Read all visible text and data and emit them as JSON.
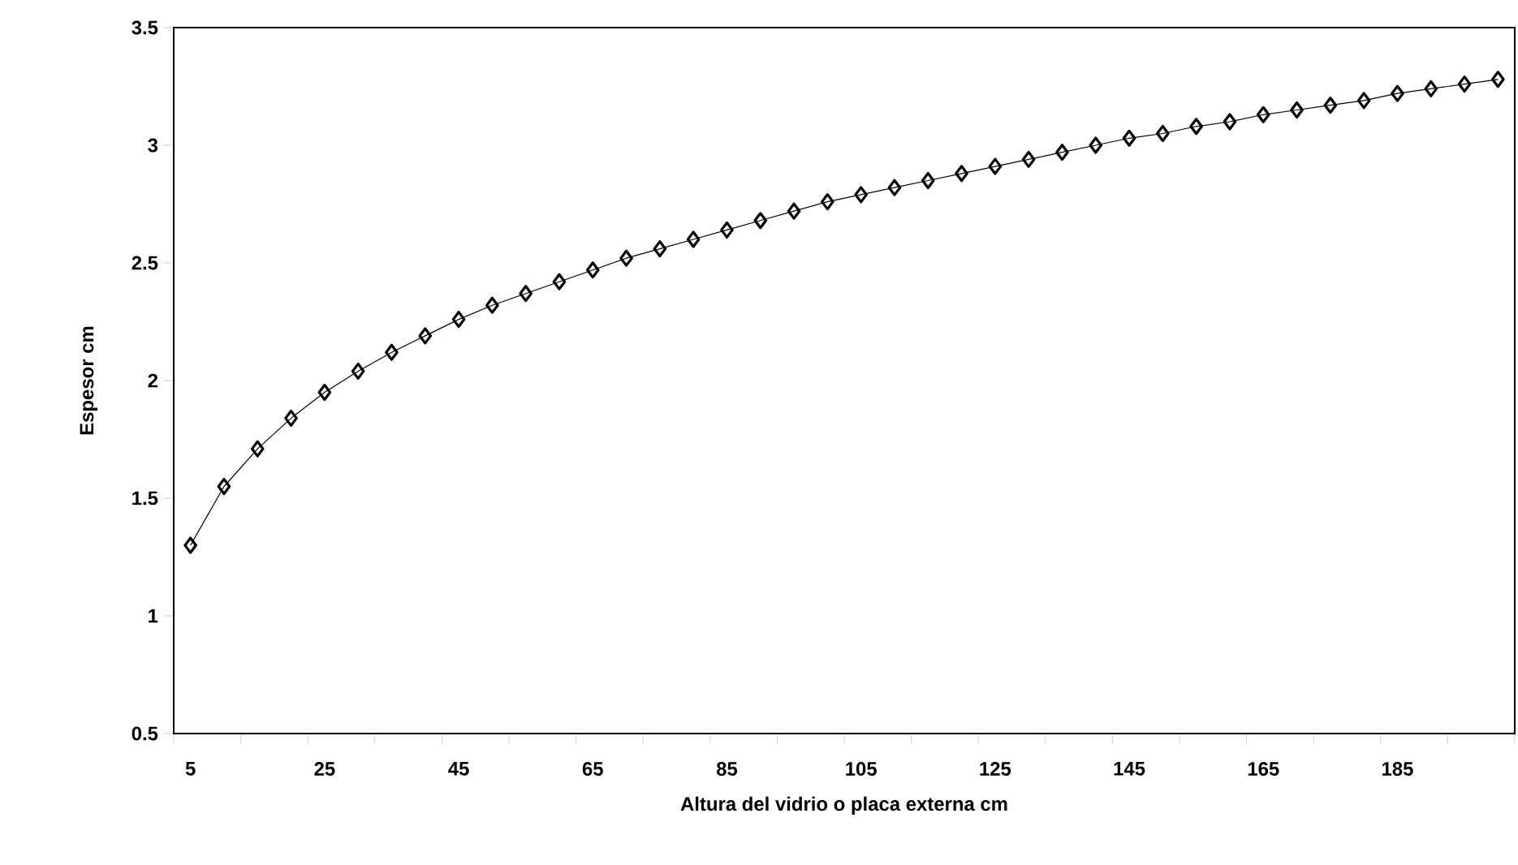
{
  "chart_data": {
    "type": "line",
    "xlabel": "Altura del vidrio o placa externa cm",
    "ylabel": "Espesor cm",
    "categories": [
      "5",
      null,
      null,
      null,
      "25",
      null,
      null,
      null,
      "45",
      null,
      null,
      null,
      "65",
      null,
      null,
      null,
      "85",
      null,
      null,
      null,
      "105",
      null,
      null,
      null,
      "125",
      null,
      null,
      null,
      "145",
      null,
      null,
      null,
      "165",
      null,
      null,
      null,
      "185",
      null,
      null,
      null
    ],
    "series": [
      {
        "color": "#000000",
        "values": [
          1.3,
          1.55,
          1.71,
          1.84,
          1.95,
          2.04,
          2.12,
          2.19,
          2.26,
          2.32,
          2.37,
          2.42,
          2.47,
          2.52,
          2.56,
          2.6,
          2.64,
          2.68,
          2.72,
          2.76,
          2.79,
          2.82,
          2.85,
          2.88,
          2.91,
          2.94,
          2.97,
          3.0,
          3.03,
          3.05,
          3.08,
          3.1,
          3.13,
          3.15,
          3.17,
          3.19,
          3.22,
          3.24,
          3.26,
          3.28
        ]
      }
    ],
    "ylim": [
      0.5,
      3.5
    ],
    "yticks": [
      0.5,
      1,
      1.5,
      2,
      2.5,
      3,
      3.5
    ],
    "grid": false,
    "legend": false,
    "marker": "diamond",
    "line_style": "solid"
  }
}
